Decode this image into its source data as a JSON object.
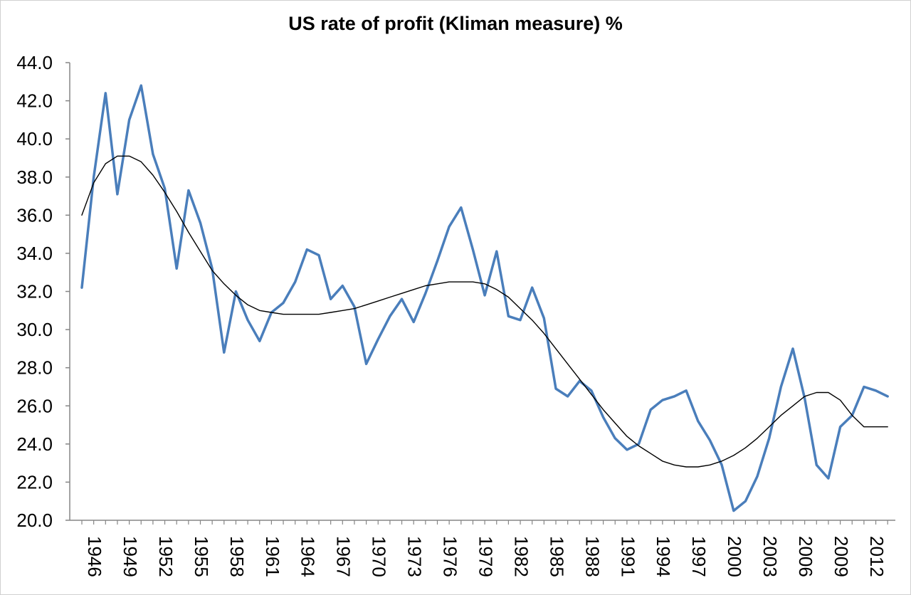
{
  "chart_data": {
    "type": "line",
    "title": "US rate of profit (Kliman measure) %",
    "xlabel": "",
    "ylabel": "",
    "ylim": [
      20.0,
      44.0
    ],
    "y_ticks": [
      "20.0",
      "22.0",
      "24.0",
      "26.0",
      "28.0",
      "30.0",
      "32.0",
      "34.0",
      "36.0",
      "38.0",
      "40.0",
      "42.0",
      "44.0"
    ],
    "x_tick_labels": [
      "1946",
      "1949",
      "1952",
      "1955",
      "1958",
      "1961",
      "1964",
      "1967",
      "1970",
      "1973",
      "1976",
      "1979",
      "1982",
      "1985",
      "1988",
      "1991",
      "1994",
      "1997",
      "2000",
      "2003",
      "2006",
      "2009",
      "2012"
    ],
    "grid": false,
    "legend": "none",
    "x": [
      1946,
      1947,
      1948,
      1949,
      1950,
      1951,
      1952,
      1953,
      1954,
      1955,
      1956,
      1957,
      1958,
      1959,
      1960,
      1961,
      1962,
      1963,
      1964,
      1965,
      1966,
      1967,
      1968,
      1969,
      1970,
      1971,
      1972,
      1973,
      1974,
      1975,
      1976,
      1977,
      1978,
      1979,
      1980,
      1981,
      1982,
      1983,
      1984,
      1985,
      1986,
      1987,
      1988,
      1989,
      1990,
      1991,
      1992,
      1993,
      1994,
      1995,
      1996,
      1997,
      1998,
      1999,
      2000,
      2001,
      2002,
      2003,
      2004,
      2005,
      2006,
      2007,
      2008,
      2009,
      2010,
      2011,
      2012,
      2013,
      2014
    ],
    "series": [
      {
        "color": "#4a7ebb",
        "style": "thick",
        "values": [
          32.2,
          38.0,
          42.4,
          37.1,
          41.0,
          42.8,
          39.2,
          37.4,
          33.2,
          37.3,
          35.6,
          33.2,
          28.8,
          32.0,
          30.5,
          29.4,
          30.9,
          31.4,
          32.5,
          34.2,
          33.9,
          31.6,
          32.3,
          31.2,
          28.2,
          29.5,
          30.7,
          31.6,
          30.4,
          31.9,
          33.6,
          35.4,
          36.4,
          34.2,
          31.8,
          34.1,
          30.7,
          30.5,
          32.2,
          30.6,
          26.9,
          26.5,
          27.3,
          26.8,
          25.4,
          24.3,
          23.7,
          24.0,
          25.8,
          26.3,
          26.5,
          26.8,
          25.2,
          24.2,
          22.9,
          20.5,
          21.0,
          22.3,
          24.3,
          27.0,
          29.0,
          26.4,
          22.9,
          22.2,
          24.9,
          25.5,
          27.0,
          26.8,
          26.5
        ]
      },
      {
        "color": "#000000",
        "style": "thin",
        "values": [
          36.0,
          37.7,
          38.7,
          39.1,
          39.1,
          38.8,
          38.1,
          37.2,
          36.2,
          35.1,
          34.1,
          33.1,
          32.4,
          31.8,
          31.3,
          31.0,
          30.9,
          30.8,
          30.8,
          30.8,
          30.8,
          30.9,
          31.0,
          31.1,
          31.3,
          31.5,
          31.7,
          31.9,
          32.1,
          32.3,
          32.4,
          32.5,
          32.5,
          32.5,
          32.4,
          32.1,
          31.7,
          31.1,
          30.5,
          29.8,
          29.0,
          28.2,
          27.4,
          26.6,
          25.8,
          25.1,
          24.4,
          23.9,
          23.5,
          23.1,
          22.9,
          22.8,
          22.8,
          22.9,
          23.1,
          23.4,
          23.8,
          24.3,
          24.9,
          25.5,
          26.0,
          26.5,
          26.7,
          26.7,
          26.3,
          25.5,
          24.9,
          24.9,
          24.9
        ]
      }
    ]
  }
}
